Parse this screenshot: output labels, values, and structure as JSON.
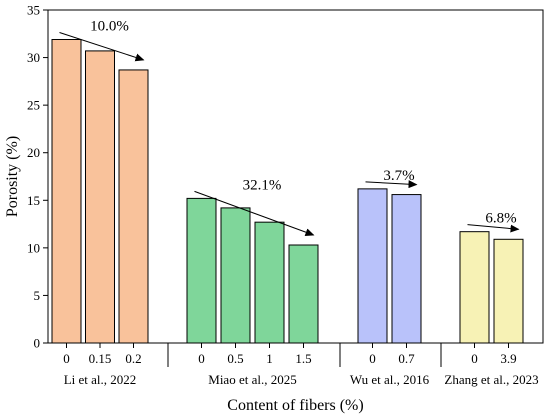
{
  "chart_data": {
    "type": "bar",
    "xlabel": "Content of fibers (%)",
    "ylabel": "Porosity (%)",
    "ylim": [
      0,
      35
    ],
    "yticks": [
      0,
      5,
      10,
      15,
      20,
      25,
      30,
      35
    ],
    "grid": false,
    "groups": [
      {
        "label": "Li et al., 2022",
        "color": "#f9c29b",
        "categories": [
          "0",
          "0.15",
          "0.2"
        ],
        "values": [
          31.9,
          30.7,
          28.7
        ],
        "reduction": "10.0%"
      },
      {
        "label": "Miao et al., 2025",
        "color": "#7fd69a",
        "categories": [
          "0",
          "0.5",
          "1",
          "1.5"
        ],
        "values": [
          15.2,
          14.2,
          12.7,
          10.3
        ],
        "reduction": "32.1%"
      },
      {
        "label": "Wu et al., 2016",
        "color": "#b9c2fa",
        "categories": [
          "0",
          "0.7"
        ],
        "values": [
          16.2,
          15.6
        ],
        "reduction": "3.7%"
      },
      {
        "label": "Zhang et al., 2023",
        "color": "#f7f2b5",
        "categories": [
          "0",
          "3.9"
        ],
        "values": [
          11.7,
          10.9
        ],
        "reduction": "6.8%"
      }
    ]
  }
}
